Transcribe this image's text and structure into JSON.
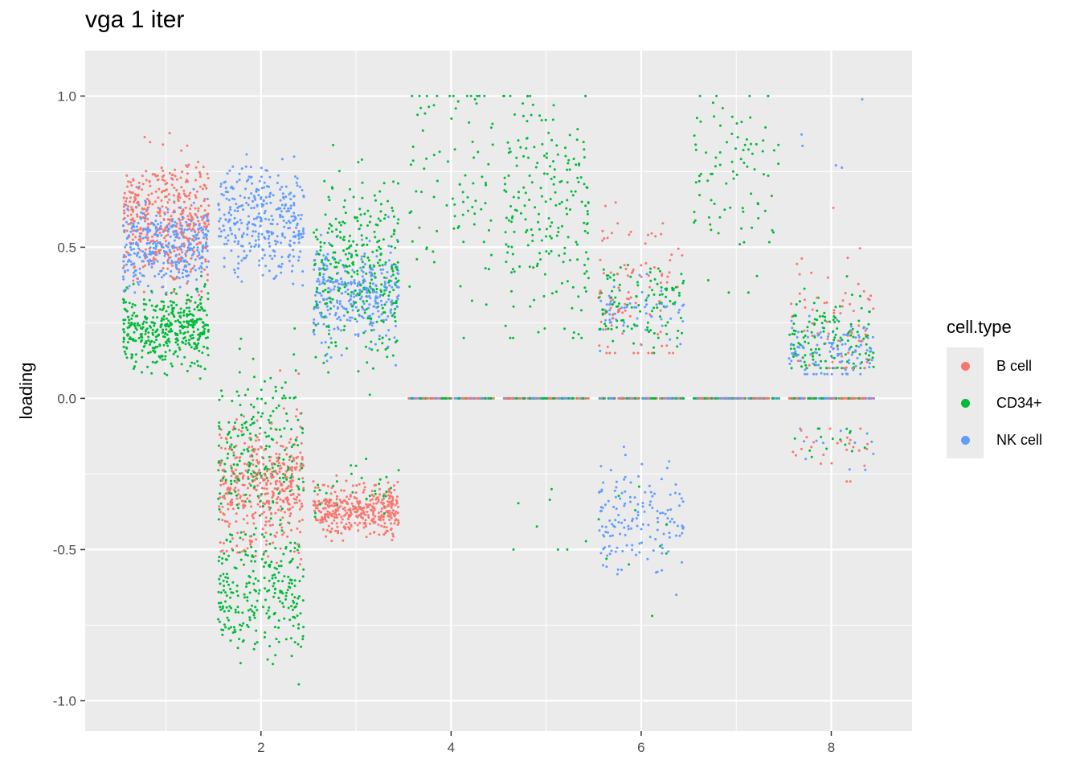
{
  "chart_data": {
    "type": "scatter",
    "title": "vga 1 iter",
    "ylabel": "loading",
    "xlabel": "",
    "xlim": [
      0.15,
      8.85
    ],
    "ylim": [
      -1.1,
      1.15
    ],
    "x_ticks": [
      2,
      4,
      6,
      8
    ],
    "y_ticks": [
      -1.0,
      -0.5,
      0.0,
      0.5,
      1.0
    ],
    "x_tick_labels": [
      "2",
      "4",
      "6",
      "8"
    ],
    "y_tick_labels": [
      "-1.0",
      "-0.5",
      "0.0",
      "0.5",
      "1.0"
    ],
    "grid": true,
    "legend": {
      "title": "cell.type",
      "position": "right",
      "entries": [
        {
          "name": "B cell",
          "color": "#F8766D"
        },
        {
          "name": "CD34+",
          "color": "#00BA38"
        },
        {
          "name": "NK cell",
          "color": "#619CFF"
        }
      ]
    },
    "jitter_width": 0.45,
    "point_clusters": [
      {
        "x": 1,
        "series": "B cell",
        "n": 420,
        "mean": 0.6,
        "sd": 0.1,
        "min": 0.3,
        "max": 1.0
      },
      {
        "x": 1,
        "series": "NK cell",
        "n": 380,
        "mean": 0.5,
        "sd": 0.07,
        "min": 0.35,
        "max": 0.7
      },
      {
        "x": 1,
        "series": "CD34+",
        "n": 420,
        "mean": 0.23,
        "sd": 0.06,
        "min": 0.05,
        "max": 0.45
      },
      {
        "x": 2,
        "series": "NK cell",
        "n": 340,
        "mean": 0.6,
        "sd": 0.1,
        "min": 0.3,
        "max": 0.9
      },
      {
        "x": 2,
        "series": "B cell",
        "n": 420,
        "mean": -0.3,
        "sd": 0.1,
        "min": -0.55,
        "max": 0.1
      },
      {
        "x": 2,
        "series": "CD34+",
        "n": 240,
        "mean": -0.2,
        "sd": 0.15,
        "min": -0.55,
        "max": 0.25
      },
      {
        "x": 2,
        "series": "CD34+",
        "n": 260,
        "mean": -0.65,
        "sd": 0.1,
        "min": -1.0,
        "max": -0.45
      },
      {
        "x": 3,
        "series": "CD34+",
        "n": 320,
        "mean": 0.42,
        "sd": 0.15,
        "min": 0.0,
        "max": 0.85
      },
      {
        "x": 3,
        "series": "NK cell",
        "n": 320,
        "mean": 0.35,
        "sd": 0.08,
        "min": 0.1,
        "max": 0.6
      },
      {
        "x": 3,
        "series": "B cell",
        "n": 380,
        "mean": -0.37,
        "sd": 0.04,
        "min": -0.5,
        "max": -0.25
      },
      {
        "x": 3,
        "series": "CD34+",
        "n": 30,
        "mean": -0.3,
        "sd": 0.05,
        "min": -0.4,
        "max": -0.2
      },
      {
        "x": 4,
        "series": "CD34+",
        "n": 90,
        "mean": 0.7,
        "sd": 0.25,
        "min": 0.2,
        "max": 1.0
      },
      {
        "x": 5,
        "series": "CD34+",
        "n": 210,
        "mean": 0.65,
        "sd": 0.2,
        "min": 0.2,
        "max": 1.0
      },
      {
        "x": 5,
        "series": "CD34+",
        "n": 8,
        "mean": -0.4,
        "sd": 0.07,
        "min": -0.5,
        "max": -0.3
      },
      {
        "x": 6,
        "series": "B cell",
        "n": 90,
        "mean": 0.35,
        "sd": 0.15,
        "min": 0.15,
        "max": 0.85
      },
      {
        "x": 6,
        "series": "CD34+",
        "n": 110,
        "mean": 0.3,
        "sd": 0.07,
        "min": 0.15,
        "max": 0.5
      },
      {
        "x": 6,
        "series": "NK cell",
        "n": 60,
        "mean": 0.3,
        "sd": 0.06,
        "min": 0.15,
        "max": 0.45
      },
      {
        "x": 6,
        "series": "NK cell",
        "n": 150,
        "mean": -0.4,
        "sd": 0.1,
        "min": -0.75,
        "max": -0.1
      },
      {
        "x": 6,
        "series": "CD34+",
        "n": 10,
        "mean": -0.45,
        "sd": 0.15,
        "min": -0.8,
        "max": -0.2
      },
      {
        "x": 7,
        "series": "CD34+",
        "n": 90,
        "mean": 0.75,
        "sd": 0.15,
        "min": 0.35,
        "max": 1.0
      },
      {
        "x": 8,
        "series": "CD34+",
        "n": 130,
        "mean": 0.2,
        "sd": 0.07,
        "min": 0.1,
        "max": 0.45
      },
      {
        "x": 8,
        "series": "NK cell",
        "n": 110,
        "mean": 0.15,
        "sd": 0.05,
        "min": 0.08,
        "max": 0.35
      },
      {
        "x": 8,
        "series": "B cell",
        "n": 70,
        "mean": 0.25,
        "sd": 0.15,
        "min": 0.1,
        "max": 0.65
      },
      {
        "x": 8,
        "series": "B cell",
        "n": 25,
        "mean": -0.15,
        "sd": 0.06,
        "min": -0.36,
        "max": -0.1
      },
      {
        "x": 8,
        "series": "NK cell",
        "n": 12,
        "mean": -0.15,
        "sd": 0.08,
        "min": -0.35,
        "max": -0.1
      },
      {
        "x": 8,
        "series": "CD34+",
        "n": 15,
        "mean": -0.15,
        "sd": 0.05,
        "min": -0.3,
        "max": -0.1
      },
      {
        "x": 8,
        "series": "NK cell",
        "n": 5,
        "mean": 0.85,
        "sd": 0.1,
        "min": 0.7,
        "max": 1.0
      }
    ],
    "zero_lines": [
      {
        "x": 4,
        "series": [
          "B cell",
          "CD34+",
          "NK cell"
        ],
        "y": 0.0
      },
      {
        "x": 5,
        "series": [
          "B cell",
          "CD34+",
          "NK cell"
        ],
        "y": 0.0
      },
      {
        "x": 6,
        "series": [
          "B cell",
          "CD34+",
          "NK cell"
        ],
        "y": 0.0
      },
      {
        "x": 7,
        "series": [
          "B cell",
          "CD34+",
          "NK cell"
        ],
        "y": 0.0
      },
      {
        "x": 8,
        "series": [
          "B cell",
          "CD34+",
          "NK cell"
        ],
        "y": 0.0
      }
    ]
  }
}
